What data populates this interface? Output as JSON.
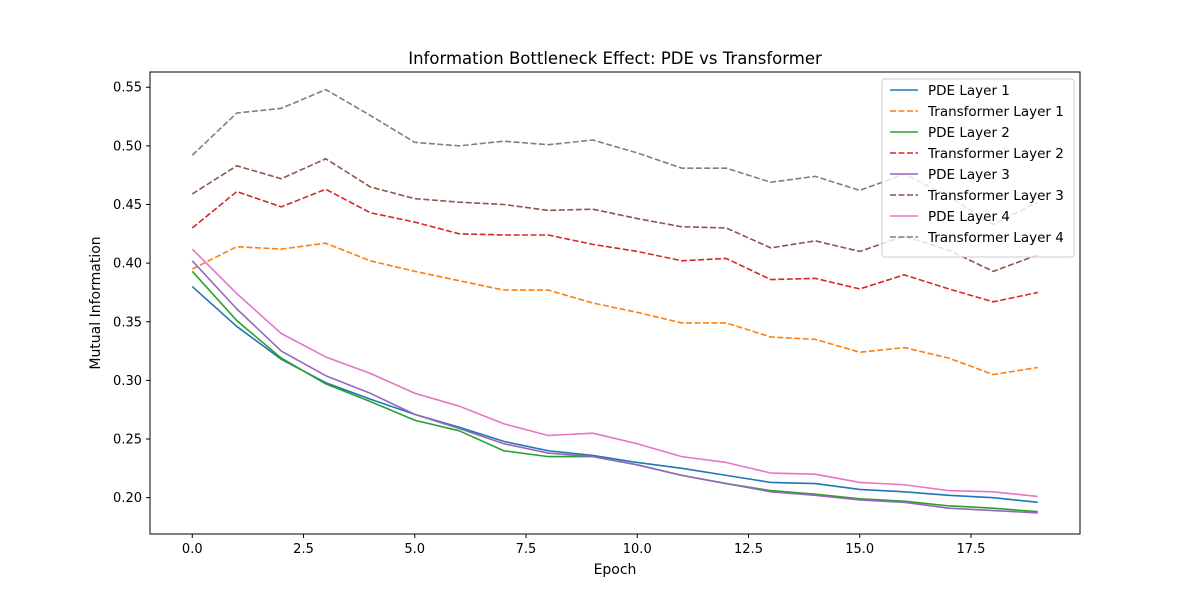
{
  "chart_data": {
    "type": "line",
    "title": "Information Bottleneck Effect: PDE vs Transformer",
    "xlabel": "Epoch",
    "ylabel": "Mutual Information",
    "xlim": [
      -0.95,
      19.95
    ],
    "ylim": [
      0.169,
      0.563
    ],
    "xticks": [
      0.0,
      2.5,
      5.0,
      7.5,
      10.0,
      12.5,
      15.0,
      17.5
    ],
    "xtick_labels": [
      "0.0",
      "2.5",
      "5.0",
      "7.5",
      "10.0",
      "12.5",
      "15.0",
      "17.5"
    ],
    "yticks": [
      0.2,
      0.25,
      0.3,
      0.35,
      0.4,
      0.45,
      0.5,
      0.55
    ],
    "ytick_labels": [
      "0.20",
      "0.25",
      "0.30",
      "0.35",
      "0.40",
      "0.45",
      "0.50",
      "0.55"
    ],
    "grid": false,
    "legend_position": "top-right",
    "x": [
      0,
      1,
      2,
      3,
      4,
      5,
      6,
      7,
      8,
      9,
      10,
      11,
      12,
      13,
      14,
      15,
      16,
      17,
      18,
      19
    ],
    "series": [
      {
        "name": "PDE Layer 1",
        "color": "#1f77b4",
        "style": "solid",
        "values": [
          0.38,
          0.346,
          0.318,
          0.298,
          0.284,
          0.271,
          0.26,
          0.248,
          0.24,
          0.236,
          0.23,
          0.225,
          0.219,
          0.213,
          0.212,
          0.207,
          0.205,
          0.202,
          0.2,
          0.196
        ]
      },
      {
        "name": "Transformer Layer 1",
        "color": "#ff7f0e",
        "style": "dashed",
        "values": [
          0.395,
          0.414,
          0.412,
          0.417,
          0.402,
          0.393,
          0.385,
          0.377,
          0.377,
          0.366,
          0.358,
          0.349,
          0.349,
          0.337,
          0.335,
          0.324,
          0.328,
          0.319,
          0.305,
          0.311
        ]
      },
      {
        "name": "PDE Layer 2",
        "color": "#2ca02c",
        "style": "solid",
        "values": [
          0.393,
          0.351,
          0.319,
          0.297,
          0.282,
          0.266,
          0.257,
          0.24,
          0.235,
          0.235,
          0.228,
          0.219,
          0.212,
          0.206,
          0.203,
          0.199,
          0.197,
          0.193,
          0.191,
          0.188
        ]
      },
      {
        "name": "Transformer Layer 2",
        "color": "#d62728",
        "style": "dashed",
        "values": [
          0.43,
          0.461,
          0.448,
          0.463,
          0.443,
          0.435,
          0.425,
          0.424,
          0.424,
          0.416,
          0.41,
          0.402,
          0.404,
          0.386,
          0.387,
          0.378,
          0.39,
          0.378,
          0.367,
          0.375
        ]
      },
      {
        "name": "PDE Layer 3",
        "color": "#9467bd",
        "style": "solid",
        "values": [
          0.402,
          0.361,
          0.325,
          0.304,
          0.289,
          0.271,
          0.259,
          0.246,
          0.238,
          0.235,
          0.228,
          0.219,
          0.212,
          0.205,
          0.202,
          0.198,
          0.196,
          0.191,
          0.189,
          0.187
        ]
      },
      {
        "name": "Transformer Layer 3",
        "color": "#8c564b",
        "style": "dashed",
        "values": [
          0.459,
          0.483,
          0.472,
          0.489,
          0.465,
          0.455,
          0.452,
          0.45,
          0.445,
          0.446,
          0.438,
          0.431,
          0.43,
          0.413,
          0.419,
          0.41,
          0.423,
          0.411,
          0.393,
          0.407
        ]
      },
      {
        "name": "PDE Layer 4",
        "color": "#e377c2",
        "style": "solid",
        "values": [
          0.412,
          0.374,
          0.34,
          0.32,
          0.306,
          0.289,
          0.278,
          0.263,
          0.253,
          0.255,
          0.246,
          0.235,
          0.23,
          0.221,
          0.22,
          0.213,
          0.211,
          0.206,
          0.205,
          0.201
        ]
      },
      {
        "name": "Transformer Layer 4",
        "color": "#7f7f7f",
        "style": "dashed",
        "values": [
          0.492,
          0.528,
          0.532,
          0.548,
          0.526,
          0.503,
          0.5,
          0.504,
          0.501,
          0.505,
          0.494,
          0.481,
          0.481,
          0.469,
          0.474,
          0.462,
          0.476,
          0.457,
          0.433,
          0.452
        ]
      }
    ]
  }
}
